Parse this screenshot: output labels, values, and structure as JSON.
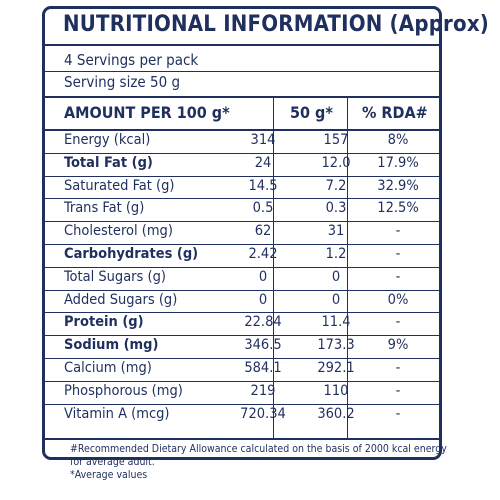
{
  "title": "NUTRITIONAL INFORMATION (Approx)",
  "servings_per_pack": "4 Servings per pack",
  "serving_size": "Serving size 50 g",
  "header": {
    "col1": "AMOUNT PER 100 g*",
    "col2": "50 g*",
    "col3": "% RDA#"
  },
  "rows": [
    {
      "name": "Energy (kcal)",
      "per100": "314",
      "per50": "157",
      "rda": "8%",
      "bold": false
    },
    {
      "name": "Total Fat (g)",
      "per100": "24",
      "per50": "12.0",
      "rda": "17.9%",
      "bold": true
    },
    {
      "name": "Saturated Fat (g)",
      "per100": "14.5",
      "per50": "7.2",
      "rda": "32.9%",
      "bold": false
    },
    {
      "name": "Trans Fat (g)",
      "per100": "0.5",
      "per50": "0.3",
      "rda": "12.5%",
      "bold": false
    },
    {
      "name": "Cholesterol (mg)",
      "per100": "62",
      "per50": "31",
      "rda": "-",
      "bold": false
    },
    {
      "name": "Carbohydrates (g)",
      "per100": "2.42",
      "per50": "1.2",
      "rda": "-",
      "bold": true
    },
    {
      "name": "Total Sugars (g)",
      "per100": "0",
      "per50": "0",
      "rda": "-",
      "bold": false
    },
    {
      "name": "Added Sugars (g)",
      "per100": "0",
      "per50": "0",
      "rda": "0%",
      "bold": false
    },
    {
      "name": "Protein (g)",
      "per100": "22.84",
      "per50": "11.4",
      "rda": "-",
      "bold": true
    },
    {
      "name": "Sodium (mg)",
      "per100": "346.5",
      "per50": "173.3",
      "rda": "9%",
      "bold": true
    },
    {
      "name": "Calcium (mg)",
      "per100": "584.1",
      "per50": "292.1",
      "rda": "-",
      "bold": false
    },
    {
      "name": "Phosphorous (mg)",
      "per100": "219",
      "per50": "110",
      "rda": "-",
      "bold": false
    },
    {
      "name": "Vitamin A (mcg)",
      "per100": "720.34",
      "per50": "360.2",
      "rda": "-",
      "bold": false
    }
  ],
  "footnotes": {
    "line1": "#Recommended Dietary Allowance calculated on the basis of 2000 kcal energy",
    "line2": "for average adult.",
    "line3": "*Average values"
  },
  "colors": {
    "ink": "#1f2f5e",
    "background": "#ffffff"
  }
}
